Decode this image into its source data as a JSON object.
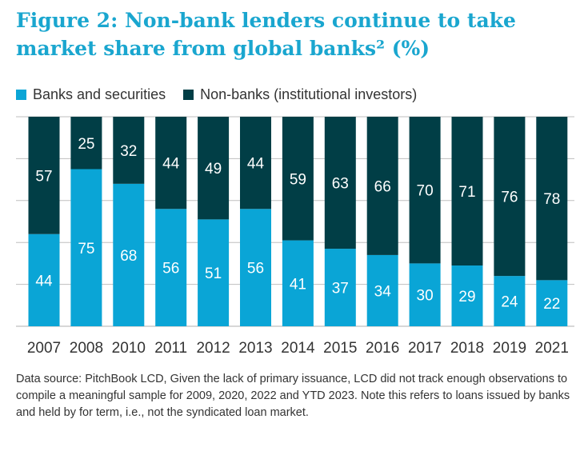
{
  "chart_data": {
    "type": "bar",
    "stacked": true,
    "title": "Figure 2: Non-bank lenders continue to take market share from global banks² (%)",
    "categories": [
      "2007",
      "2008",
      "2010",
      "2011",
      "2012",
      "2013",
      "2014",
      "2015",
      "2016",
      "2017",
      "2018",
      "2019",
      "2021"
    ],
    "series": [
      {
        "name": "Banks and securities",
        "color": "#0aa5d6",
        "values": [
          44,
          75,
          68,
          56,
          51,
          56,
          41,
          37,
          34,
          30,
          29,
          24,
          22
        ]
      },
      {
        "name": "Non-banks (institutional investors)",
        "color": "#013e46",
        "values": [
          57,
          25,
          32,
          44,
          49,
          44,
          59,
          63,
          66,
          70,
          71,
          76,
          78
        ]
      }
    ],
    "ylim": [
      0,
      100
    ],
    "grid": true,
    "legend_position": "top-left",
    "footnote": "Data source: PitchBook LCD, Given the lack of primary issuance, LCD did not track enough observations to compile a meaningful sample for 2009, 2020, 2022 and YTD 2023. Note this refers to loans issued by banks and held by for term, i.e., not the syndicated loan market."
  }
}
